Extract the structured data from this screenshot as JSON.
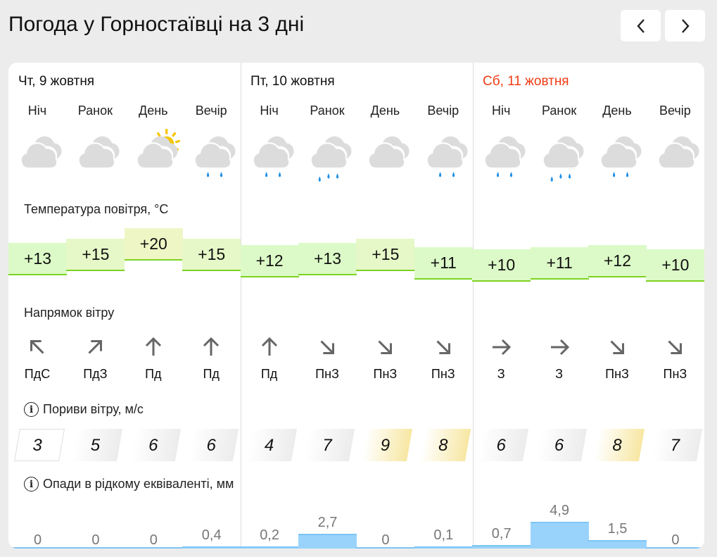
{
  "header": {
    "title": "Погода у Горностаївці на 3 дні",
    "prev_icon": "chevron-left-icon",
    "next_icon": "chevron-right-icon"
  },
  "days": [
    {
      "label": "Чт, 9 жовтня",
      "weekend": false
    },
    {
      "label": "Пт, 10 жовтня",
      "weekend": false
    },
    {
      "label": "Сб, 11 жовтня",
      "weekend": true
    }
  ],
  "periods": [
    "Ніч",
    "Ранок",
    "День",
    "Вечір",
    "Ніч",
    "Ранок",
    "День",
    "Вечір",
    "Ніч",
    "Ранок",
    "День",
    "Вечір"
  ],
  "icons": [
    "cloudy-icon",
    "cloudy-icon",
    "partly-sunny-icon",
    "rain-icon",
    "rain-icon",
    "heavy-rain-icon",
    "cloudy-icon",
    "rain-icon",
    "rain-icon",
    "heavy-rain-icon",
    "rain-icon",
    "cloudy-icon"
  ],
  "sections": {
    "temperature": "Температура повітря, °C",
    "wind": "Напрямок вітру",
    "gusts": "Пориви вітру, м/с",
    "precip": "Опади в рідкому еквіваленті, мм"
  },
  "temperatures": [
    "+13",
    "+15",
    "+20",
    "+15",
    "+12",
    "+13",
    "+15",
    "+11",
    "+10",
    "+11",
    "+12",
    "+10"
  ],
  "wind_dirs": [
    "ПдС",
    "ПдЗ",
    "Пд",
    "Пд",
    "Пд",
    "ПнЗ",
    "ПнЗ",
    "ПнЗ",
    "З",
    "З",
    "ПнЗ",
    "ПнЗ"
  ],
  "wind_arrow_deg": [
    -45,
    45,
    0,
    0,
    0,
    135,
    135,
    135,
    90,
    90,
    135,
    135
  ],
  "gusts": [
    "3",
    "5",
    "6",
    "6",
    "4",
    "7",
    "9",
    "8",
    "6",
    "6",
    "8",
    "7"
  ],
  "precipitation": [
    "0",
    "0",
    "0",
    "0,4",
    "0,2",
    "2,7",
    "0",
    "0,1",
    "0,7",
    "4,9",
    "1,5",
    "0"
  ],
  "colors": {
    "weekend": "#f03c14",
    "rain": "#99d3fb",
    "temp_border": "#7cd322",
    "gust_strong": "#f7e7a3"
  }
}
